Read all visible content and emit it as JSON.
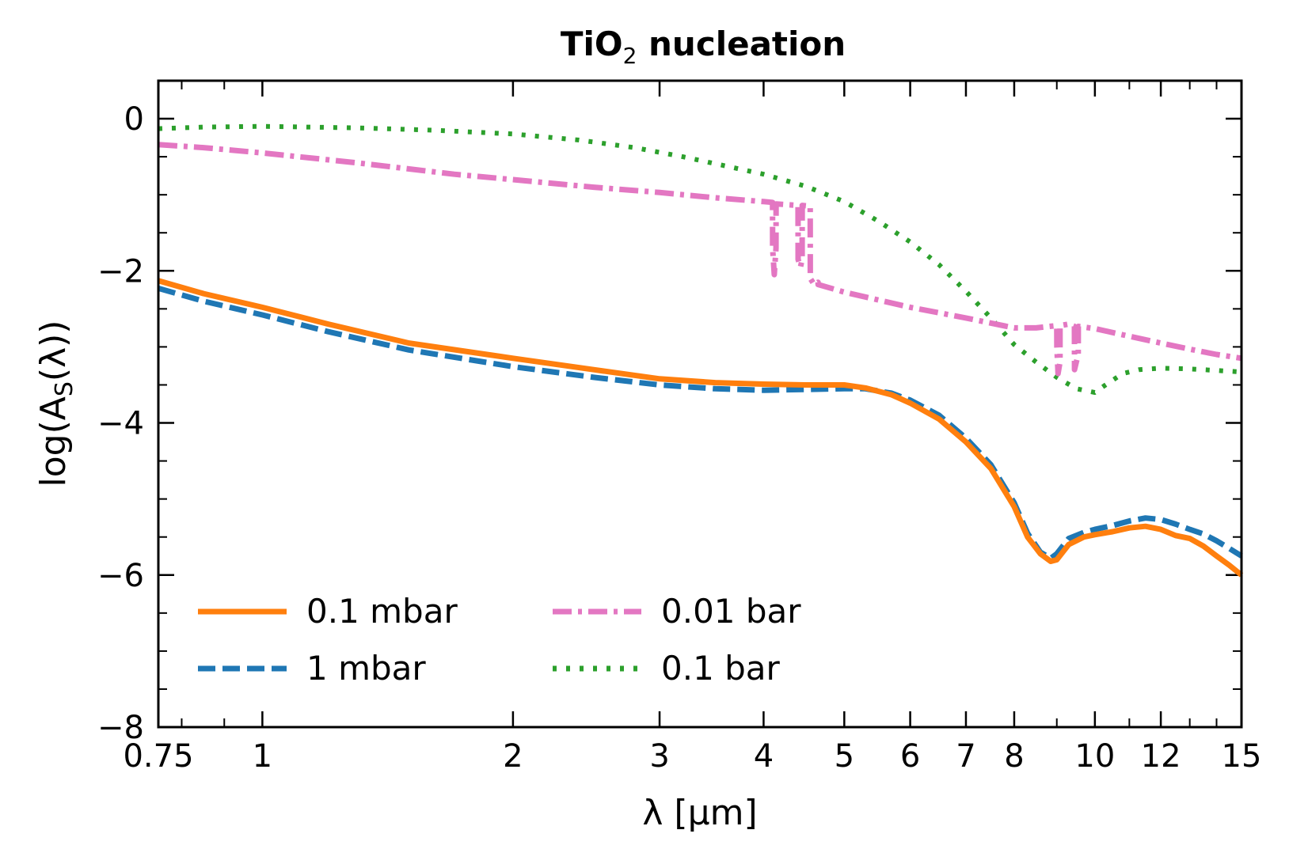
{
  "chart_data": {
    "type": "line",
    "title": "TiO",
    "title_sub": "2",
    "title_rest": " nucleation",
    "xlabel": "λ [μm]",
    "ylabel_pre": "log(A",
    "ylabel_sub": "S",
    "ylabel_post": "(λ))",
    "x_scale": "log",
    "xlim": [
      0.75,
      15
    ],
    "ylim": [
      -8,
      0.5
    ],
    "x_ticks": [
      0.75,
      1,
      2,
      3,
      4,
      5,
      6,
      7,
      8,
      10,
      12,
      15
    ],
    "x_tick_labels": [
      "0.75",
      "1",
      "2",
      "3",
      "4",
      "5",
      "6",
      "7",
      "8",
      "10",
      "12",
      "15"
    ],
    "x_minor_ticks": [
      0.8,
      0.9,
      9,
      11,
      13,
      14
    ],
    "y_ticks": [
      -8,
      -6,
      -4,
      -2,
      0
    ],
    "y_tick_labels": [
      "−8",
      "−6",
      "−4",
      "−2",
      "0"
    ],
    "y_minor_ticks": [
      -7.5,
      -7,
      -6.5,
      -5.5,
      -5,
      -4.5,
      -3.5,
      -3,
      -2.5,
      -1.5,
      -1,
      -0.5
    ],
    "legend_position": "lower-left",
    "series": [
      {
        "name": "0.1 mbar",
        "color": "#ff7f0e",
        "style": "solid",
        "x": [
          0.75,
          0.85,
          1.0,
          1.2,
          1.5,
          2.0,
          2.5,
          3.0,
          3.5,
          4.0,
          4.5,
          5.0,
          5.3,
          5.7,
          6.0,
          6.5,
          7.0,
          7.5,
          8.0,
          8.3,
          8.6,
          8.85,
          9.0,
          9.3,
          9.7,
          10.0,
          10.5,
          11.0,
          11.5,
          12.0,
          12.5,
          13.0,
          13.5,
          14.0,
          14.5,
          15.0
        ],
        "y": [
          -2.13,
          -2.3,
          -2.48,
          -2.7,
          -2.95,
          -3.15,
          -3.3,
          -3.42,
          -3.47,
          -3.49,
          -3.5,
          -3.5,
          -3.54,
          -3.63,
          -3.74,
          -3.95,
          -4.25,
          -4.6,
          -5.1,
          -5.5,
          -5.72,
          -5.82,
          -5.8,
          -5.6,
          -5.5,
          -5.47,
          -5.43,
          -5.38,
          -5.36,
          -5.4,
          -5.48,
          -5.52,
          -5.62,
          -5.75,
          -5.87,
          -6.0
        ]
      },
      {
        "name": "1 mbar",
        "color": "#1f77b4",
        "style": "dashed",
        "x": [
          0.75,
          0.85,
          1.0,
          1.2,
          1.5,
          2.0,
          2.5,
          3.0,
          3.5,
          4.0,
          4.5,
          5.0,
          5.3,
          5.7,
          6.0,
          6.5,
          7.0,
          7.5,
          8.0,
          8.3,
          8.6,
          8.85,
          9.0,
          9.3,
          9.7,
          10.0,
          10.5,
          11.0,
          11.5,
          12.0,
          12.5,
          13.0,
          13.5,
          14.0,
          14.5,
          15.0
        ],
        "y": [
          -2.23,
          -2.4,
          -2.58,
          -2.8,
          -3.04,
          -3.26,
          -3.4,
          -3.5,
          -3.55,
          -3.57,
          -3.56,
          -3.55,
          -3.55,
          -3.61,
          -3.7,
          -3.9,
          -4.2,
          -4.55,
          -5.05,
          -5.45,
          -5.7,
          -5.78,
          -5.72,
          -5.52,
          -5.44,
          -5.4,
          -5.35,
          -5.29,
          -5.25,
          -5.27,
          -5.33,
          -5.4,
          -5.46,
          -5.55,
          -5.65,
          -5.75
        ]
      },
      {
        "name": "0.01 bar",
        "color": "#e377c2",
        "style": "dashdot",
        "x": [
          0.75,
          0.85,
          1.0,
          1.3,
          1.7,
          2.0,
          2.5,
          3.0,
          3.5,
          4.0,
          4.1,
          4.101,
          4.12,
          4.14,
          4.141,
          4.4,
          4.401,
          4.43,
          4.45,
          4.451,
          4.55,
          4.551,
          4.6,
          4.65,
          4.651,
          5.0,
          6.0,
          7.0,
          8.0,
          8.5,
          9.0,
          9.001,
          9.03,
          9.08,
          9.081,
          9.3,
          9.45,
          9.451,
          9.5,
          9.55,
          9.551,
          10.0,
          11.0,
          12.0,
          13.0,
          14.0,
          15.0
        ],
        "y": [
          -0.34,
          -0.38,
          -0.45,
          -0.58,
          -0.73,
          -0.8,
          -0.9,
          -0.97,
          -1.04,
          -1.09,
          -1.1,
          -1.7,
          -2.05,
          -1.7,
          -1.12,
          -1.14,
          -1.85,
          -1.95,
          -1.85,
          -1.14,
          -1.15,
          -2.1,
          -2.18,
          -2.15,
          -2.18,
          -2.28,
          -2.48,
          -2.62,
          -2.75,
          -2.75,
          -2.72,
          -3.0,
          -3.35,
          -3.2,
          -2.72,
          -2.7,
          -2.73,
          -3.3,
          -3.2,
          -3.1,
          -2.73,
          -2.76,
          -2.86,
          -2.95,
          -3.03,
          -3.1,
          -3.15
        ]
      },
      {
        "name": "0.1 bar",
        "color": "#2ca02c",
        "style": "dotted",
        "x": [
          0.75,
          0.85,
          1.0,
          1.3,
          1.6,
          2.0,
          2.4,
          2.8,
          3.2,
          3.6,
          4.0,
          4.5,
          5.0,
          5.5,
          6.0,
          6.5,
          7.0,
          7.5,
          8.0,
          8.5,
          9.0,
          9.5,
          10.0,
          10.3,
          10.8,
          11.3,
          12.0,
          13.0,
          14.0,
          15.0
        ],
        "y": [
          -0.13,
          -0.11,
          -0.1,
          -0.12,
          -0.15,
          -0.2,
          -0.28,
          -0.38,
          -0.5,
          -0.62,
          -0.73,
          -0.89,
          -1.09,
          -1.35,
          -1.62,
          -1.92,
          -2.27,
          -2.62,
          -2.97,
          -3.2,
          -3.4,
          -3.55,
          -3.6,
          -3.5,
          -3.35,
          -3.3,
          -3.28,
          -3.29,
          -3.31,
          -3.33
        ]
      }
    ]
  }
}
